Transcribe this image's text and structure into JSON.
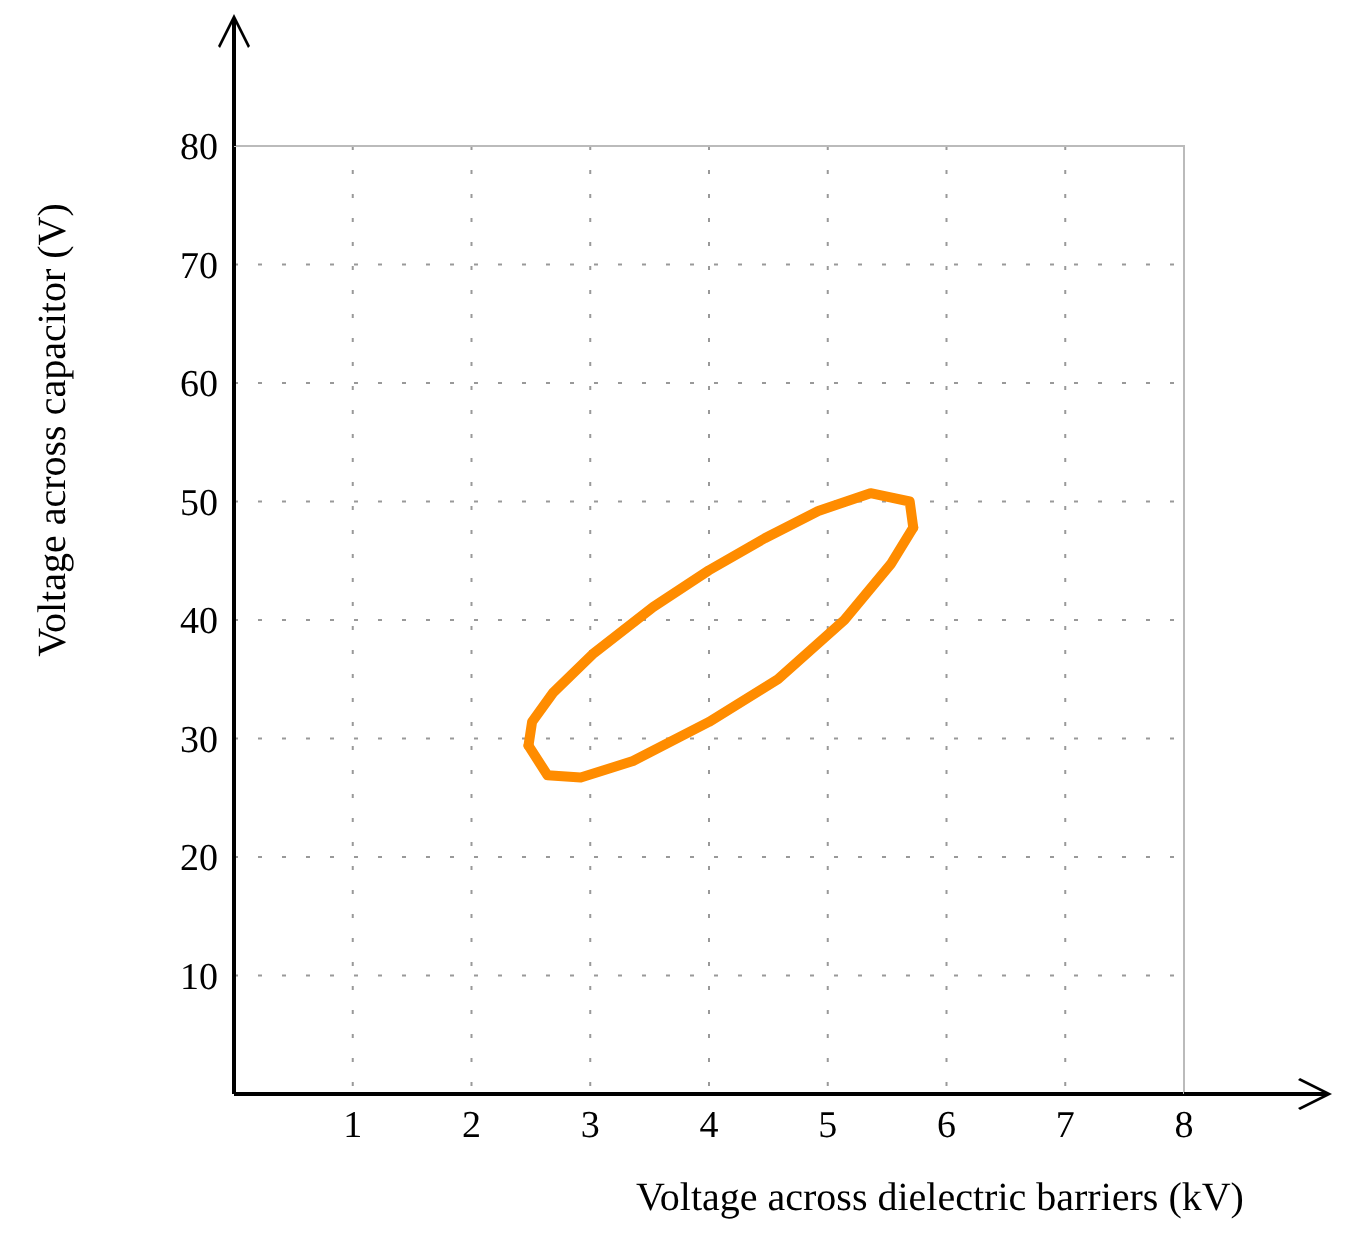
{
  "chart_data": {
    "type": "line",
    "xlabel": "Voltage across dielectric barriers (kV)",
    "ylabel": "Voltage across capacitor (V)",
    "xlim": [
      0,
      8
    ],
    "ylim": [
      0,
      80
    ],
    "xticks": [
      1,
      2,
      3,
      4,
      5,
      6,
      7,
      8
    ],
    "yticks": [
      10,
      20,
      30,
      40,
      50,
      60,
      70,
      80
    ],
    "grid": true,
    "marker": "none",
    "line_style": "solid",
    "series": [
      {
        "color": "#ff8c00",
        "x": [
          2.48,
          2.64,
          2.92,
          3.36,
          4.0,
          4.58,
          5.14,
          5.53,
          5.72
        ],
        "values": [
          29.4,
          26.9,
          26.7,
          28.1,
          31.4,
          35.0,
          40.0,
          44.7,
          47.8
        ]
      },
      {
        "color": "#ff8c00",
        "x": [
          2.48,
          2.51,
          2.69,
          3.03,
          3.53,
          4.0,
          4.47,
          4.92,
          5.36,
          5.69,
          5.72
        ],
        "values": [
          29.4,
          31.4,
          33.9,
          37.2,
          41.1,
          44.2,
          46.9,
          49.2,
          50.7,
          50.0,
          47.8
        ]
      }
    ]
  }
}
